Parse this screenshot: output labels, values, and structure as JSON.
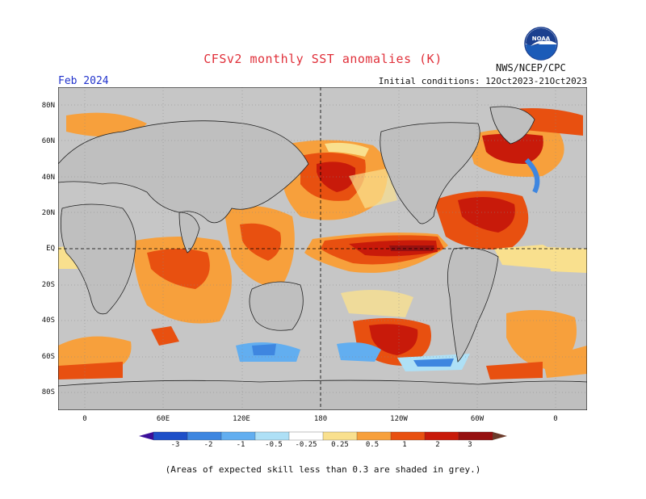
{
  "header": {
    "title": "CFSv2 monthly SST anomalies (K)",
    "month": "Feb 2024",
    "initial_conditions": "Initial conditions: 12Oct2023-21Oct2023",
    "agency": "NWS/NCEP/CPC",
    "logo_text": "NOAA"
  },
  "axes": {
    "lat_labels": [
      "80N",
      "60N",
      "40N",
      "20N",
      "EQ",
      "20S",
      "40S",
      "60S",
      "80S"
    ],
    "lon_labels": [
      "0",
      "60E",
      "120E",
      "180",
      "120W",
      "60W",
      "0"
    ]
  },
  "colorbar": {
    "labels": [
      "-3",
      "-2",
      "-1",
      "-0.5",
      "-0.25",
      "0.25",
      "0.5",
      "1",
      "2",
      "3"
    ],
    "colors": [
      "#3b0f9a",
      "#1e4fc8",
      "#3e86e0",
      "#62aef0",
      "#aee0f6",
      "#ffffff",
      "#f9e08e",
      "#f7a03c",
      "#e85010",
      "#c81a0a",
      "#961010",
      "#6b3a2a"
    ]
  },
  "colors": {
    "land": "#bfbfbf",
    "ocean_unskilled": "#c6c6c6",
    "title": "#e0303a",
    "month": "#2233cc"
  },
  "footnote": "(Areas of expected skill less than 0.3 are shaded in grey.)"
}
